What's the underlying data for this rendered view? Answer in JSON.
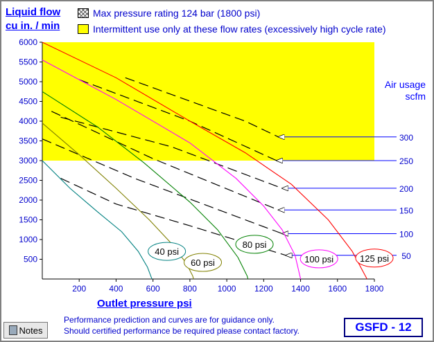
{
  "notes_button": "Notes",
  "model_box": "GSFD - 12",
  "footer": {
    "line1": "Performance prediction and curves are for guidance only.",
    "line2": "Should certified performance be required please contact factory."
  },
  "chart_data": {
    "type": "line",
    "title": "",
    "ylabel_line1": "Liquid flow",
    "ylabel_line2": "cu in. / min",
    "xlabel": "Outlet pressure   psi",
    "xlim": [
      0,
      1800
    ],
    "ylim": [
      0,
      6000
    ],
    "x_ticks": [
      "200",
      "400",
      "600",
      "800",
      "1000",
      "1200",
      "1400",
      "1600",
      "1800"
    ],
    "y_ticks": [
      "500",
      "1000",
      "1500",
      "2000",
      "2500",
      "3000",
      "3500",
      "4000",
      "4500",
      "5000",
      "5500",
      "6000"
    ],
    "legend": [
      {
        "name": "Max pressure rating 124 bar (1800 psi)",
        "swatch": "hatch"
      },
      {
        "name": "Intermittent use only at these flow rates (excessively high cycle rate)",
        "swatch": "yellow"
      }
    ],
    "intermittent_zone": {
      "y_from": 3000,
      "y_to": 6000,
      "x_to": 1800,
      "color": "#ffff00"
    },
    "air_usage_label_line1": "Air usage",
    "air_usage_label_line2": "scfm",
    "series": [
      {
        "name": "40 psi",
        "color": "#008080",
        "x": [
          0,
          150,
          300,
          430,
          520,
          570,
          590,
          595
        ],
        "y": [
          3000,
          2300,
          1700,
          1200,
          700,
          300,
          50,
          0
        ]
      },
      {
        "name": "60 psi",
        "color": "#808000",
        "x": [
          0,
          200,
          400,
          580,
          700,
          780,
          815,
          820
        ],
        "y": [
          3950,
          3150,
          2300,
          1500,
          900,
          400,
          80,
          0
        ]
      },
      {
        "name": "80 psi",
        "color": "#008000",
        "x": [
          0,
          300,
          550,
          800,
          950,
          1060,
          1110,
          1115
        ],
        "y": [
          4750,
          3850,
          2950,
          1950,
          1250,
          550,
          80,
          0
        ]
      },
      {
        "name": "100 psi",
        "color": "#ff00ff",
        "x": [
          0,
          400,
          800,
          1050,
          1200,
          1300,
          1370,
          1400
        ],
        "y": [
          5550,
          4550,
          3450,
          2550,
          1850,
          1250,
          600,
          0
        ]
      },
      {
        "name": "125 psi",
        "color": "#ff0000",
        "x": [
          0,
          400,
          800,
          1100,
          1350,
          1550,
          1680,
          1760
        ],
        "y": [
          6000,
          5100,
          4000,
          3200,
          2400,
          1500,
          700,
          0
        ]
      }
    ],
    "air_usage_lines": [
      {
        "name": "300",
        "x": [
          450,
          1100,
          1280
        ],
        "y": [
          5100,
          4000,
          3600
        ]
      },
      {
        "name": "250",
        "x": [
          200,
          800,
          1270
        ],
        "y": [
          5050,
          4000,
          3000
        ]
      },
      {
        "name": "200",
        "x": [
          100,
          700,
          1300
        ],
        "y": [
          4100,
          3350,
          2300
        ]
      },
      {
        "name": "150",
        "x": [
          50,
          600,
          1280
        ],
        "y": [
          4250,
          3050,
          1750
        ]
      },
      {
        "name": "100",
        "x": [
          0,
          500,
          1300
        ],
        "y": [
          3550,
          2550,
          1150
        ]
      },
      {
        "name": "50",
        "x": [
          100,
          400,
          800,
          1320
        ],
        "y": [
          2550,
          1900,
          1350,
          600
        ]
      }
    ],
    "series_label_positions": [
      {
        "name": "40 psi",
        "x": 675,
        "y": 700
      },
      {
        "name": "60 psi",
        "x": 870,
        "y": 420
      },
      {
        "name": "80 psi",
        "x": 1150,
        "y": 880
      },
      {
        "name": "100 psi",
        "x": 1500,
        "y": 510
      },
      {
        "name": "125 psi",
        "x": 1800,
        "y": 530
      }
    ]
  }
}
